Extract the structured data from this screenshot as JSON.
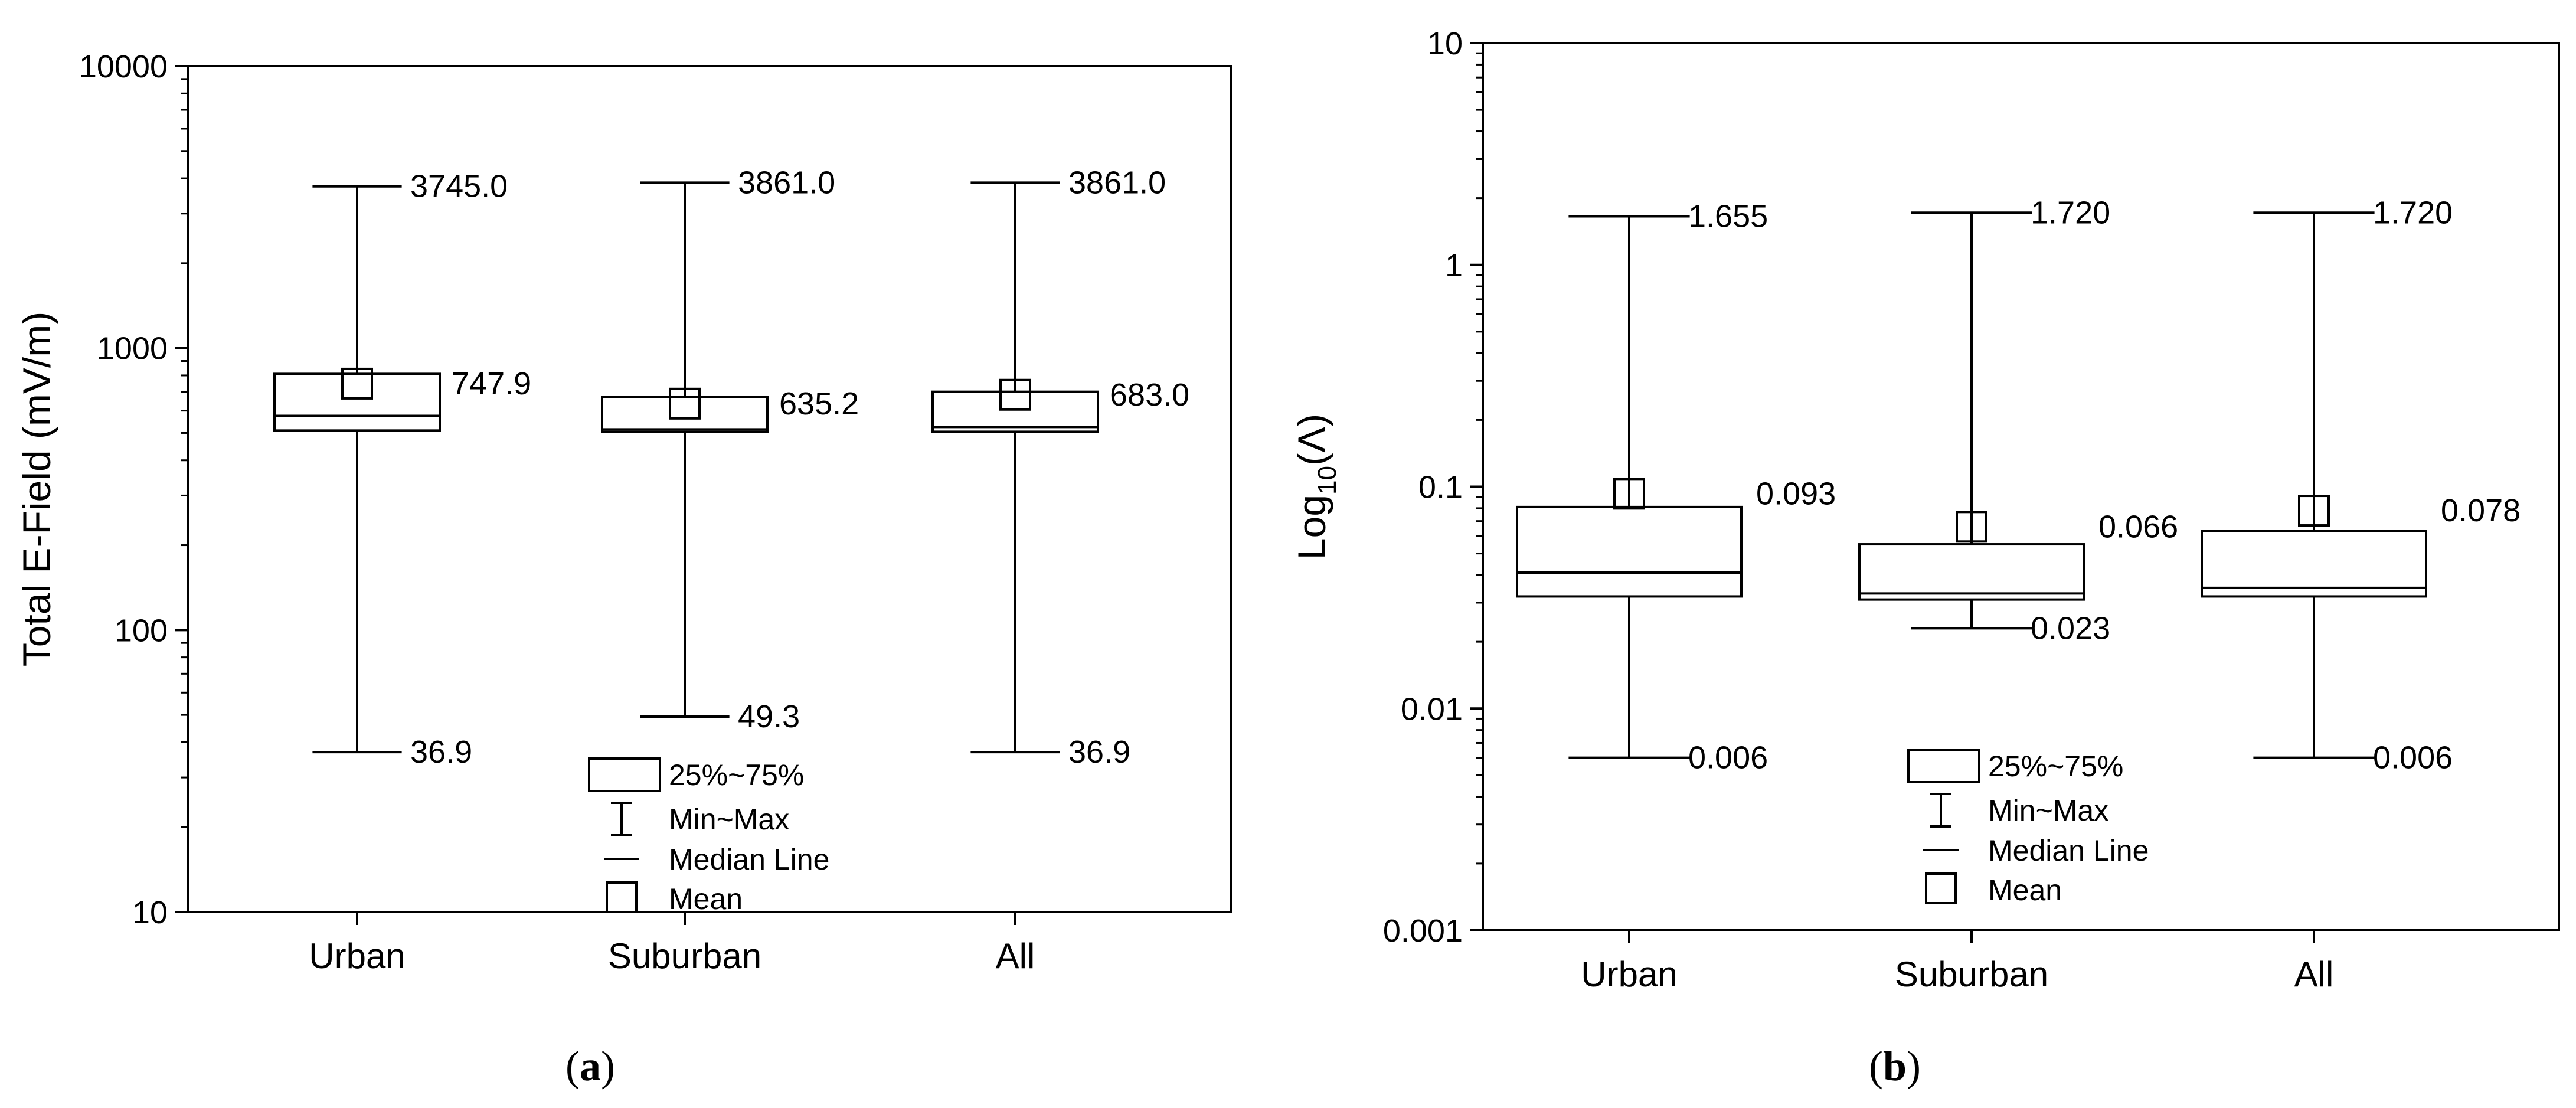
{
  "chart_data": [
    {
      "type": "box",
      "caption": {
        "open": "(",
        "letter": "a",
        "close": ")"
      },
      "ylabel": "Total E-Field (mV/m)",
      "yscale": "log",
      "ylim": [
        10,
        10000
      ],
      "yticks": [
        10,
        100,
        1000,
        10000
      ],
      "ytick_labels": [
        "10",
        "100",
        "1000",
        "10000"
      ],
      "categories": [
        "Urban",
        "Suburban",
        "All"
      ],
      "boxes": [
        {
          "category": "Urban",
          "min": 36.9,
          "q1": 510,
          "median": 575,
          "q3": 810,
          "max": 3745.0,
          "mean": 747.9,
          "label_max": "3745.0",
          "label_mean": "747.9",
          "label_min": "36.9"
        },
        {
          "category": "Suburban",
          "min": 49.3,
          "q1": 505,
          "median": 515,
          "q3": 670,
          "max": 3861.0,
          "mean": 635.2,
          "label_max": "3861.0",
          "label_mean": "635.2",
          "label_min": "49.3"
        },
        {
          "category": "All",
          "min": 36.9,
          "q1": 505,
          "median": 525,
          "q3": 700,
          "max": 3861.0,
          "mean": 683.0,
          "label_max": "3861.0",
          "label_mean": "683.0",
          "label_min": "36.9"
        }
      ],
      "legend": {
        "placement": "bottom-center",
        "box": "25%~75%",
        "whisker": "Min~Max",
        "median": "Median Line",
        "mean": "Mean"
      }
    },
    {
      "type": "box",
      "caption": {
        "open": "(",
        "letter": "b",
        "close": ")"
      },
      "ylabel_main": "Log",
      "ylabel_sub": "10",
      "ylabel_tail": "(Λ)",
      "yscale": "log",
      "ylim": [
        0.001,
        10
      ],
      "yticks": [
        0.001,
        0.01,
        0.1,
        1,
        10
      ],
      "ytick_labels": [
        "0.001",
        "0.01",
        "0.1",
        "1",
        "10"
      ],
      "categories": [
        "Urban",
        "Suburban",
        "All"
      ],
      "boxes": [
        {
          "category": "Urban",
          "min": 0.006,
          "q1": 0.032,
          "median": 0.041,
          "q3": 0.081,
          "max": 1.655,
          "mean": 0.093,
          "label_max": "1.655",
          "label_mean": "0.093",
          "label_min": "0.006"
        },
        {
          "category": "Suburban",
          "min": 0.023,
          "q1": 0.031,
          "median": 0.033,
          "q3": 0.055,
          "max": 1.72,
          "mean": 0.066,
          "label_max": "1.720",
          "label_mean": "0.066",
          "label_min": "0.023"
        },
        {
          "category": "All",
          "min": 0.006,
          "q1": 0.032,
          "median": 0.035,
          "q3": 0.063,
          "max": 1.72,
          "mean": 0.078,
          "label_max": "1.720",
          "label_mean": "0.078",
          "label_min": "0.006"
        }
      ],
      "legend": {
        "placement": "bottom-center",
        "box": "25%~75%",
        "whisker": "Min~Max",
        "median": "Median Line",
        "mean": "Mean"
      }
    }
  ]
}
